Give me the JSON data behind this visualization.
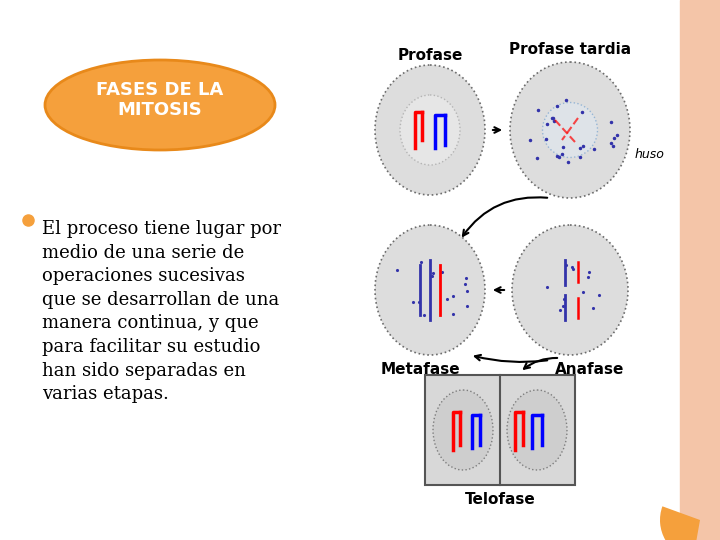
{
  "background_color": "#ffffff",
  "slide_right_strip_color": "#f4c5a8",
  "oval_color": "#f5a03c",
  "oval_border_color": "#e8891a",
  "oval_text": "FASES DE LA\nMITOSIS",
  "oval_text_color": "#ffffff",
  "bullet_color": "#f5a03c",
  "body_text": "El proceso tiene lugar por\nmedio de una serie de\noperaciones sucesivas\nque se desarrollan de una\nmanera continua, y que\npara facilitar su estudio\nhan sido separadas en\nvarias etapas.",
  "body_text_color": "#000000",
  "diagram_labels": [
    "Profase",
    "Profase tardia",
    "Metafase",
    "Anafase",
    "Telofase"
  ],
  "huso_label": "huso",
  "orange_crescent_color": "#f5a03c",
  "font_size_oval": 13,
  "font_size_body": 13,
  "font_size_diagram": 11
}
